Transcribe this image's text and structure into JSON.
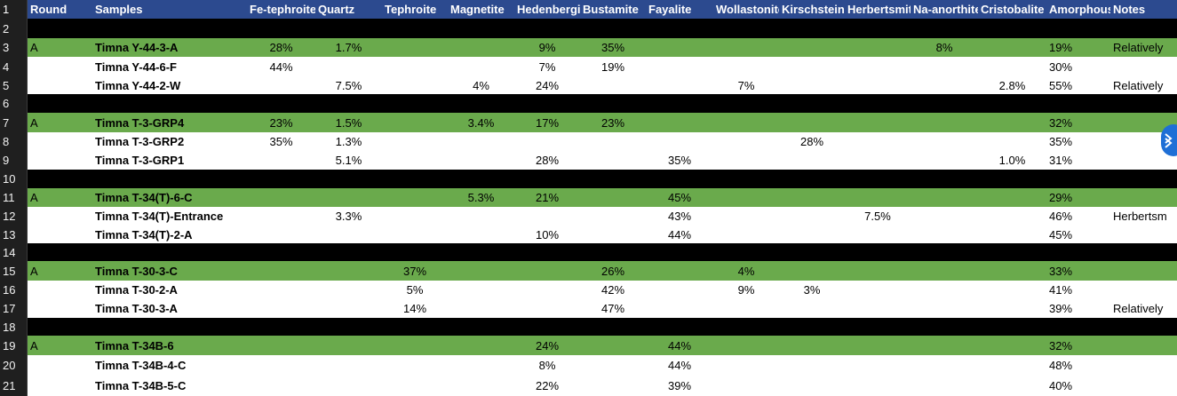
{
  "sheet": {
    "columns": [
      {
        "key": "round",
        "label": "Round"
      },
      {
        "key": "sample",
        "label": "Samples"
      },
      {
        "key": "fe_tephroite",
        "label": "Fe-tephroite"
      },
      {
        "key": "quartz",
        "label": "Quartz"
      },
      {
        "key": "tephroite",
        "label": "Tephroite"
      },
      {
        "key": "magnetite",
        "label": "Magnetite"
      },
      {
        "key": "hedenbergite",
        "label": "Hedenbergite"
      },
      {
        "key": "bustamite",
        "label": "Bustamite"
      },
      {
        "key": "fayalite",
        "label": "Fayalite"
      },
      {
        "key": "wollastonite",
        "label": "Wollastonite"
      },
      {
        "key": "kirschsteinite",
        "label": "Kirschsteinite"
      },
      {
        "key": "herbertsmithite",
        "label": "Herbertsmithite"
      },
      {
        "key": "na_anorthite",
        "label": "Na-anorthite"
      },
      {
        "key": "cristobalite",
        "label": "Cristobalite"
      },
      {
        "key": "amorphous",
        "label": "Amorphous"
      },
      {
        "key": "notes",
        "label": "Notes"
      }
    ],
    "rows": [
      {
        "num": "1",
        "type": "header"
      },
      {
        "num": "2",
        "type": "black",
        "cells": {}
      },
      {
        "num": "3",
        "type": "green",
        "cells": {
          "round": "A",
          "sample": "Timna Y-44-3-A",
          "fe_tephroite": "28%",
          "quartz": "1.7%",
          "hedenbergite": "9%",
          "bustamite": "35%",
          "na_anorthite": "8%",
          "amorphous": "19%",
          "notes": "Relatively"
        }
      },
      {
        "num": "4",
        "type": "white",
        "cells": {
          "sample": "Timna Y-44-6-F",
          "fe_tephroite": "44%",
          "hedenbergite": "7%",
          "bustamite": "19%",
          "amorphous": "30%"
        }
      },
      {
        "num": "5",
        "type": "white",
        "cells": {
          "sample": "Timna Y-44-2-W",
          "quartz": "7.5%",
          "magnetite": "4%",
          "hedenbergite": "24%",
          "wollastonite": "7%",
          "cristobalite": "2.8%",
          "amorphous": "55%",
          "notes": "Relatively"
        }
      },
      {
        "num": "6",
        "type": "black",
        "cells": {}
      },
      {
        "num": "7",
        "type": "green",
        "cells": {
          "round": "A",
          "sample": "Timna T-3-GRP4",
          "fe_tephroite": "23%",
          "quartz": "1.5%",
          "magnetite": "3.4%",
          "hedenbergite": "17%",
          "bustamite": "23%",
          "amorphous": "32%"
        }
      },
      {
        "num": "8",
        "type": "white",
        "cells": {
          "sample": "Timna T-3-GRP2",
          "fe_tephroite": "35%",
          "quartz": "1.3%",
          "kirschsteinite": "28%",
          "amorphous": "35%"
        }
      },
      {
        "num": "9",
        "type": "white",
        "cells": {
          "sample": "Timna T-3-GRP1",
          "quartz": "5.1%",
          "hedenbergite": "28%",
          "fayalite": "35%",
          "cristobalite": "1.0%",
          "amorphous": "31%"
        }
      },
      {
        "num": "10",
        "type": "black",
        "cells": {}
      },
      {
        "num": "11",
        "type": "green",
        "cells": {
          "round": "A",
          "sample": "Timna T-34(T)-6-C",
          "magnetite": "5.3%",
          "hedenbergite": "21%",
          "fayalite": "45%",
          "amorphous": "29%"
        }
      },
      {
        "num": "12",
        "type": "white",
        "cells": {
          "sample": "Timna T-34(T)-Entrance",
          "quartz": "3.3%",
          "fayalite": "43%",
          "herbertsmithite": "7.5%",
          "amorphous": "46%",
          "notes": "Herbertsm"
        }
      },
      {
        "num": "13",
        "type": "white",
        "cells": {
          "sample": "Timna T-34(T)-2-A",
          "hedenbergite": "10%",
          "fayalite": "44%",
          "amorphous": "45%"
        }
      },
      {
        "num": "14",
        "type": "black",
        "cells": {}
      },
      {
        "num": "15",
        "type": "green",
        "cells": {
          "round": "A",
          "sample": "Timna T-30-3-C",
          "tephroite": "37%",
          "bustamite": "26%",
          "wollastonite": "4%",
          "amorphous": "33%"
        }
      },
      {
        "num": "16",
        "type": "white",
        "cells": {
          "sample": "Timna T-30-2-A",
          "tephroite": "5%",
          "bustamite": "42%",
          "wollastonite": "9%",
          "kirschsteinite": "3%",
          "amorphous": "41%"
        }
      },
      {
        "num": "17",
        "type": "white",
        "cells": {
          "sample": "Timna T-30-3-A",
          "tephroite": "14%",
          "bustamite": "47%",
          "amorphous": "39%",
          "notes": "Relatively"
        }
      },
      {
        "num": "18",
        "type": "black",
        "cells": {}
      },
      {
        "num": "19",
        "type": "green",
        "cells": {
          "round": "A",
          "sample": "Timna T-34B-6",
          "hedenbergite": "24%",
          "fayalite": "44%",
          "amorphous": "32%"
        }
      },
      {
        "num": "20",
        "type": "white",
        "cells": {
          "sample": "Timna T-34B-4-C",
          "hedenbergite": "8%",
          "fayalite": "44%",
          "amorphous": "48%"
        }
      },
      {
        "num": "21",
        "type": "white",
        "cells": {
          "sample": "Timna T-34B-5-C",
          "hedenbergite": "22%",
          "fayalite": "39%",
          "amorphous": "40%"
        }
      }
    ]
  },
  "colors": {
    "header": "#2c4a8f",
    "separator": "#000000",
    "group_start": "#6aaa4c",
    "row": "#ffffff",
    "row_numbers": "#1f1f1f"
  },
  "icons": {
    "scroll_handle": "chevron-double-icon"
  }
}
